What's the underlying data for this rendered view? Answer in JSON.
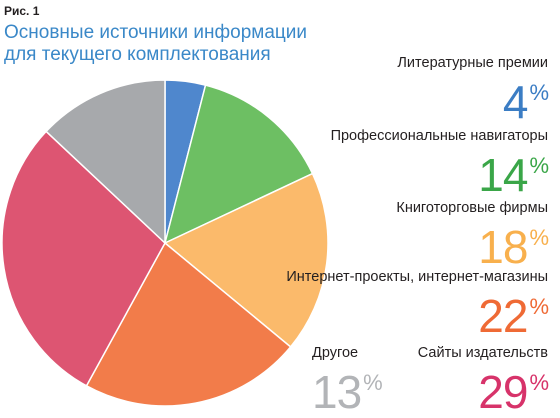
{
  "figure": {
    "label": "Рис. 1",
    "title_line1": "Основные источники информации",
    "title_line2": "для текущего комплектования"
  },
  "chart_data": {
    "type": "pie",
    "title": "Основные источники информации для текущего комплектования",
    "start_angle_deg": 0,
    "direction": "clockwise",
    "slices": [
      {
        "label": "Литературные премии",
        "value": 4,
        "display": "4",
        "color": "#4f87cd"
      },
      {
        "label": "Профессиональные навигаторы",
        "value": 14,
        "display": "14",
        "color": "#6dbf63"
      },
      {
        "label": "Книготорговые фирмы",
        "value": 18,
        "display": "18",
        "color": "#fbba6b"
      },
      {
        "label": "Интернет-проекты, интернет-магазины",
        "value": 22,
        "display": "22",
        "color": "#f27c4a"
      },
      {
        "label": "Сайты издательств",
        "value": 29,
        "display": "29",
        "color": "#dd5572"
      },
      {
        "label": "Другое",
        "value": 13,
        "display": "13",
        "color": "#a7a9ac"
      }
    ],
    "value_colors": [
      "#3b7dc4",
      "#3aa648",
      "#f8b04d",
      "#ef6a35",
      "#d7336a",
      "#b2b4b7"
    ],
    "percent_sign": "%"
  }
}
